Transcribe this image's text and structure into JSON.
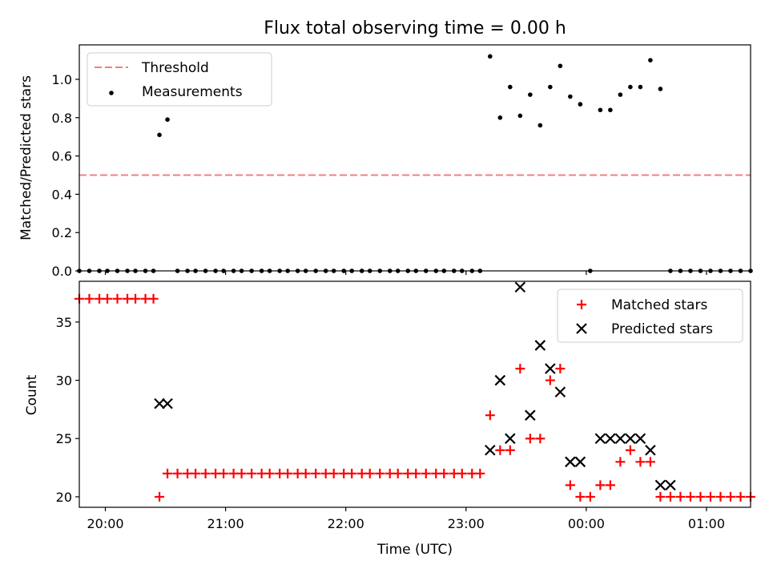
{
  "title": "Flux total observing time = 0.00 h",
  "colors": {
    "threshold": "#f08080",
    "measurement": "#000000",
    "matched": "#ff0000",
    "predicted": "#000000"
  },
  "chart_data": [
    {
      "type": "scatter",
      "panel": "top",
      "ylabel": "Matched/Predicted stars",
      "ylim": [
        0,
        1.18
      ],
      "yticks": [
        "0.0",
        "0.2",
        "0.4",
        "0.6",
        "0.8",
        "1.0"
      ],
      "legend_position": "top-left",
      "series": [
        {
          "name": "Threshold",
          "kind": "line",
          "style": "dashed",
          "x": [
            "19:47",
            "01:22"
          ],
          "y": [
            0.5,
            0.5
          ]
        },
        {
          "name": "Measurements",
          "kind": "scatter",
          "x": [
            "19:47",
            "19:52",
            "19:57",
            "20:01",
            "20:06",
            "20:11",
            "20:15",
            "20:20",
            "20:24",
            "20:27",
            "20:31",
            "20:36",
            "20:41",
            "20:45",
            "20:50",
            "20:55",
            "20:59",
            "21:04",
            "21:08",
            "21:13",
            "21:18",
            "21:22",
            "21:27",
            "21:31",
            "21:36",
            "21:40",
            "21:45",
            "21:50",
            "21:54",
            "21:59",
            "22:03",
            "22:08",
            "22:12",
            "22:17",
            "22:22",
            "22:26",
            "22:31",
            "22:35",
            "22:40",
            "22:45",
            "22:49",
            "22:54",
            "22:58",
            "23:03",
            "23:07",
            "23:12",
            "23:17",
            "23:22",
            "23:27",
            "23:32",
            "23:37",
            "23:42",
            "23:47",
            "23:52",
            "23:57",
            "00:02",
            "00:07",
            "00:12",
            "00:17",
            "00:22",
            "00:27",
            "00:32",
            "00:37",
            "00:42",
            "00:47",
            "00:52",
            "00:57",
            "01:02",
            "01:07",
            "01:12",
            "01:17",
            "01:22"
          ],
          "y": [
            0,
            0,
            0,
            0,
            0,
            0,
            0,
            0,
            0,
            0.71,
            0.79,
            0,
            0,
            0,
            0,
            0,
            0,
            0,
            0,
            0,
            0,
            0,
            0,
            0,
            0,
            0,
            0,
            0,
            0,
            0,
            0,
            0,
            0,
            0,
            0,
            0,
            0,
            0,
            0,
            0,
            0,
            0,
            0,
            0,
            0,
            1.12,
            0.8,
            0.96,
            0.81,
            0.92,
            0.76,
            0.96,
            1.07,
            0.91,
            0.87,
            0,
            0.84,
            0.84,
            0.92,
            0.96,
            0.96,
            1.1,
            0.95,
            0,
            0,
            0,
            0,
            0,
            0,
            0,
            0,
            0
          ]
        }
      ]
    },
    {
      "type": "scatter",
      "panel": "bottom",
      "xlabel": "Time (UTC)",
      "ylabel": "Count",
      "ylim": [
        19.1,
        38.5
      ],
      "yticks": [
        20,
        25,
        30,
        35
      ],
      "xticks": [
        "20:00",
        "21:00",
        "22:00",
        "23:00",
        "00:00",
        "01:00"
      ],
      "legend_position": "top-right",
      "series": [
        {
          "name": "Matched stars",
          "marker": "plus",
          "x": [
            "19:47",
            "19:52",
            "19:57",
            "20:01",
            "20:06",
            "20:11",
            "20:15",
            "20:20",
            "20:24",
            "20:27",
            "20:31",
            "20:36",
            "20:41",
            "20:45",
            "20:50",
            "20:55",
            "20:59",
            "21:04",
            "21:08",
            "21:13",
            "21:18",
            "21:22",
            "21:27",
            "21:31",
            "21:36",
            "21:40",
            "21:45",
            "21:50",
            "21:54",
            "21:59",
            "22:03",
            "22:08",
            "22:12",
            "22:17",
            "22:22",
            "22:26",
            "22:31",
            "22:35",
            "22:40",
            "22:45",
            "22:49",
            "22:54",
            "22:58",
            "23:03",
            "23:07",
            "23:12",
            "23:17",
            "23:22",
            "23:27",
            "23:32",
            "23:37",
            "23:42",
            "23:47",
            "23:52",
            "23:57",
            "00:02",
            "00:07",
            "00:12",
            "00:17",
            "00:22",
            "00:27",
            "00:32",
            "00:37",
            "00:42",
            "00:47",
            "00:52",
            "00:57",
            "01:02",
            "01:07",
            "01:12",
            "01:17",
            "01:22"
          ],
          "y": [
            37,
            37,
            37,
            37,
            37,
            37,
            37,
            37,
            37,
            20,
            22,
            22,
            22,
            22,
            22,
            22,
            22,
            22,
            22,
            22,
            22,
            22,
            22,
            22,
            22,
            22,
            22,
            22,
            22,
            22,
            22,
            22,
            22,
            22,
            22,
            22,
            22,
            22,
            22,
            22,
            22,
            22,
            22,
            22,
            22,
            27,
            24,
            24,
            31,
            25,
            25,
            30,
            31,
            21,
            20,
            20,
            21,
            21,
            23,
            24,
            23,
            23,
            20,
            20,
            20,
            20,
            20,
            20,
            20,
            20,
            20,
            20
          ]
        },
        {
          "name": "Predicted stars",
          "marker": "x",
          "x": [
            "20:27",
            "20:31",
            "23:12",
            "23:17",
            "23:22",
            "23:27",
            "23:32",
            "23:37",
            "23:42",
            "23:47",
            "23:52",
            "23:57",
            "00:02",
            "00:07",
            "00:12",
            "00:17",
            "00:22",
            "00:27",
            "00:32",
            "00:37",
            "00:42",
            "00:47",
            "00:52",
            "00:57"
          ],
          "y": [
            28,
            28,
            24,
            30,
            25,
            38,
            27,
            33,
            31,
            29,
            23,
            23,
            null,
            25,
            25,
            25,
            25,
            25,
            24,
            21,
            21,
            null,
            null,
            null
          ]
        }
      ]
    }
  ]
}
